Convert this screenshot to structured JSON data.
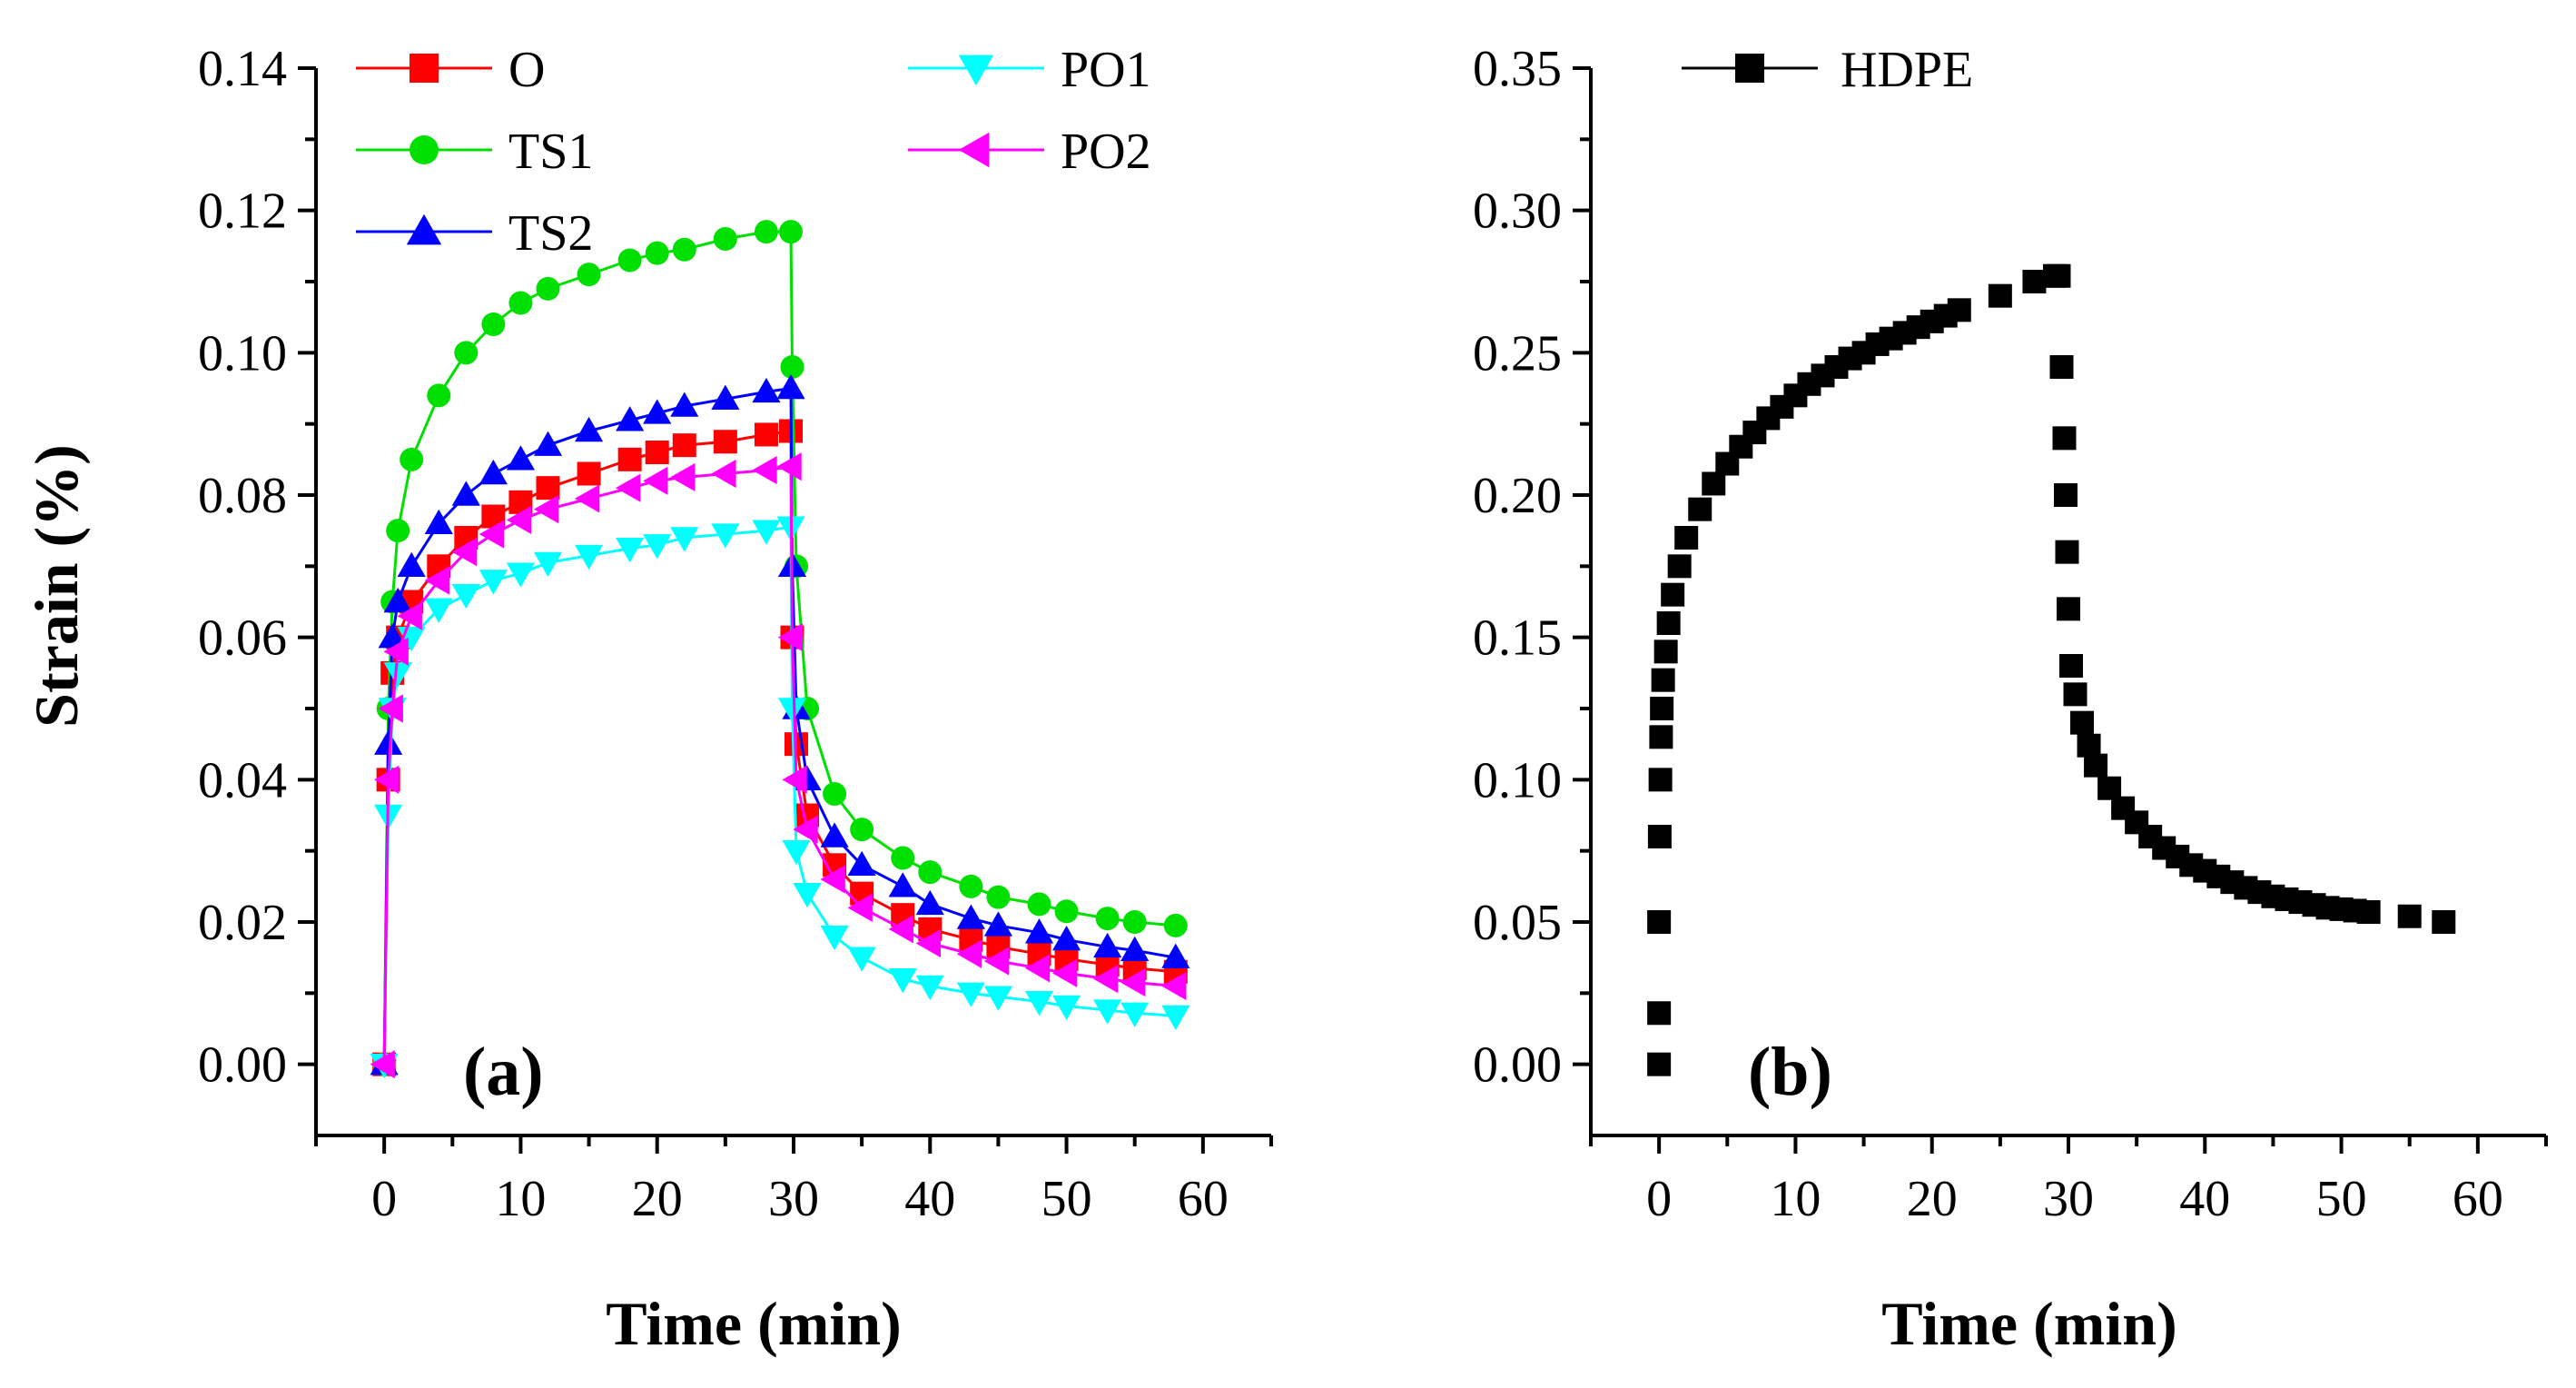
{
  "chart_data": [
    {
      "type": "line",
      "panel_label": "(a)",
      "xlabel": "Time (min)",
      "ylabel": "Strain (%)",
      "xlim": [
        -5,
        65
      ],
      "ylim": [
        -0.01,
        0.14
      ],
      "xticks": [
        "0",
        "10",
        "20",
        "30",
        "40",
        "50",
        "60"
      ],
      "xtick_values": [
        0,
        10,
        20,
        30,
        40,
        50,
        60
      ],
      "yticks": [
        "0.00",
        "0.02",
        "0.04",
        "0.06",
        "0.08",
        "0.10",
        "0.12",
        "0.14"
      ],
      "ytick_values": [
        0,
        0.02,
        0.04,
        0.06,
        0.08,
        0.1,
        0.12,
        0.14
      ],
      "legend_position": "top",
      "series": [
        {
          "name": "O",
          "color": "#ff0000",
          "marker": "square",
          "x": [
            0,
            0.3,
            0.6,
            1,
            2,
            4,
            6,
            8,
            10,
            12,
            15,
            18,
            20,
            22,
            25,
            28,
            29.8,
            29.9,
            30.2,
            31,
            33,
            35,
            38,
            40,
            43,
            45,
            48,
            50,
            53,
            55,
            58
          ],
          "y": [
            0,
            0.04,
            0.055,
            0.06,
            0.065,
            0.07,
            0.074,
            0.077,
            0.079,
            0.081,
            0.083,
            0.085,
            0.086,
            0.087,
            0.0875,
            0.0885,
            0.089,
            0.06,
            0.045,
            0.035,
            0.028,
            0.024,
            0.021,
            0.019,
            0.0175,
            0.0165,
            0.0155,
            0.0148,
            0.014,
            0.0135,
            0.013
          ]
        },
        {
          "name": "TS1",
          "color": "#00e000",
          "marker": "circle",
          "x": [
            0,
            0.3,
            0.6,
            1,
            2,
            4,
            6,
            8,
            10,
            12,
            15,
            18,
            20,
            22,
            25,
            28,
            29.8,
            29.9,
            30.2,
            31,
            33,
            35,
            38,
            40,
            43,
            45,
            48,
            50,
            53,
            55,
            58
          ],
          "y": [
            0,
            0.05,
            0.065,
            0.075,
            0.085,
            0.094,
            0.1,
            0.104,
            0.107,
            0.109,
            0.111,
            0.113,
            0.114,
            0.1145,
            0.116,
            0.117,
            0.117,
            0.098,
            0.07,
            0.05,
            0.038,
            0.033,
            0.029,
            0.027,
            0.025,
            0.0235,
            0.0225,
            0.0215,
            0.0205,
            0.02,
            0.0195
          ]
        },
        {
          "name": "TS2",
          "color": "#0000ff",
          "marker": "triangle-up",
          "x": [
            0,
            0.3,
            0.6,
            1,
            2,
            4,
            6,
            8,
            10,
            12,
            15,
            18,
            20,
            22,
            25,
            28,
            29.8,
            29.9,
            30.2,
            31,
            33,
            35,
            38,
            40,
            43,
            45,
            48,
            50,
            53,
            55,
            58
          ],
          "y": [
            0,
            0.045,
            0.06,
            0.065,
            0.07,
            0.076,
            0.08,
            0.083,
            0.085,
            0.087,
            0.089,
            0.0905,
            0.0915,
            0.0925,
            0.0935,
            0.0945,
            0.095,
            0.07,
            0.05,
            0.04,
            0.032,
            0.028,
            0.025,
            0.0225,
            0.0205,
            0.0195,
            0.0185,
            0.0175,
            0.0165,
            0.016,
            0.015
          ]
        },
        {
          "name": "PO1",
          "color": "#00ffff",
          "marker": "triangle-down",
          "x": [
            0,
            0.3,
            0.6,
            1,
            2,
            4,
            6,
            8,
            10,
            12,
            15,
            18,
            20,
            22,
            25,
            28,
            29.8,
            29.9,
            30.2,
            31,
            33,
            35,
            38,
            40,
            43,
            45,
            48,
            50,
            53,
            55,
            58
          ],
          "y": [
            0,
            0.035,
            0.05,
            0.055,
            0.06,
            0.064,
            0.066,
            0.068,
            0.069,
            0.0705,
            0.0715,
            0.0725,
            0.073,
            0.074,
            0.0745,
            0.075,
            0.0755,
            0.05,
            0.03,
            0.024,
            0.018,
            0.015,
            0.012,
            0.011,
            0.01,
            0.0095,
            0.0088,
            0.0082,
            0.0076,
            0.0072,
            0.0068
          ]
        },
        {
          "name": "PO2",
          "color": "#ff00ff",
          "marker": "triangle-left",
          "x": [
            0,
            0.3,
            0.6,
            1,
            2,
            4,
            6,
            8,
            10,
            12,
            15,
            18,
            20,
            22,
            25,
            28,
            29.8,
            29.9,
            30.2,
            31,
            33,
            35,
            38,
            40,
            43,
            45,
            48,
            50,
            53,
            55,
            58
          ],
          "y": [
            0,
            0.04,
            0.05,
            0.058,
            0.063,
            0.068,
            0.072,
            0.0745,
            0.0765,
            0.078,
            0.0795,
            0.081,
            0.082,
            0.0825,
            0.083,
            0.0835,
            0.084,
            0.06,
            0.04,
            0.033,
            0.026,
            0.022,
            0.019,
            0.017,
            0.0155,
            0.0145,
            0.0135,
            0.0128,
            0.012,
            0.0115,
            0.011
          ]
        }
      ]
    },
    {
      "type": "scatter",
      "panel_label": "(b)",
      "xlabel": "Time (min)",
      "ylabel": "",
      "xlim": [
        -5,
        65
      ],
      "ylim": [
        -0.025,
        0.35
      ],
      "xticks": [
        "0",
        "10",
        "20",
        "30",
        "40",
        "50",
        "60"
      ],
      "xtick_values": [
        0,
        10,
        20,
        30,
        40,
        50,
        60
      ],
      "yticks": [
        "0.00",
        "0.05",
        "0.10",
        "0.15",
        "0.20",
        "0.25",
        "0.30",
        "0.35"
      ],
      "ytick_values": [
        0,
        0.05,
        0.1,
        0.15,
        0.2,
        0.25,
        0.3,
        0.35
      ],
      "legend_position": "top-left",
      "series": [
        {
          "name": "HDPE",
          "color": "#000000",
          "marker": "square",
          "x": [
            0,
            0,
            0,
            0.05,
            0.1,
            0.15,
            0.2,
            0.3,
            0.5,
            0.7,
            1,
            1.5,
            2,
            3,
            4,
            5,
            6,
            7,
            8,
            9,
            10,
            11,
            12,
            13,
            14,
            15,
            16,
            17,
            18,
            19,
            20,
            21,
            22,
            25,
            27.5,
            29,
            29.3,
            29.5,
            29.7,
            29.8,
            29.9,
            30,
            30.2,
            30.5,
            31,
            31.5,
            32,
            33,
            34,
            35,
            36,
            37,
            38,
            39,
            40,
            41,
            42,
            43,
            44,
            45,
            46,
            47,
            48,
            49,
            50,
            51,
            52,
            55,
            57.5
          ],
          "y": [
            0,
            0.018,
            0.05,
            0.08,
            0.1,
            0.115,
            0.125,
            0.135,
            0.145,
            0.155,
            0.165,
            0.175,
            0.185,
            0.195,
            0.204,
            0.211,
            0.217,
            0.222,
            0.227,
            0.231,
            0.235,
            0.239,
            0.242,
            0.245,
            0.248,
            0.25,
            0.253,
            0.255,
            0.257,
            0.259,
            0.261,
            0.263,
            0.265,
            0.27,
            0.275,
            0.277,
            0.277,
            0.245,
            0.22,
            0.2,
            0.18,
            0.16,
            0.14,
            0.13,
            0.12,
            0.112,
            0.105,
            0.097,
            0.09,
            0.085,
            0.08,
            0.076,
            0.073,
            0.07,
            0.068,
            0.066,
            0.064,
            0.062,
            0.0605,
            0.059,
            0.058,
            0.057,
            0.056,
            0.055,
            0.0545,
            0.054,
            0.0535,
            0.052,
            0.05
          ]
        }
      ]
    }
  ]
}
